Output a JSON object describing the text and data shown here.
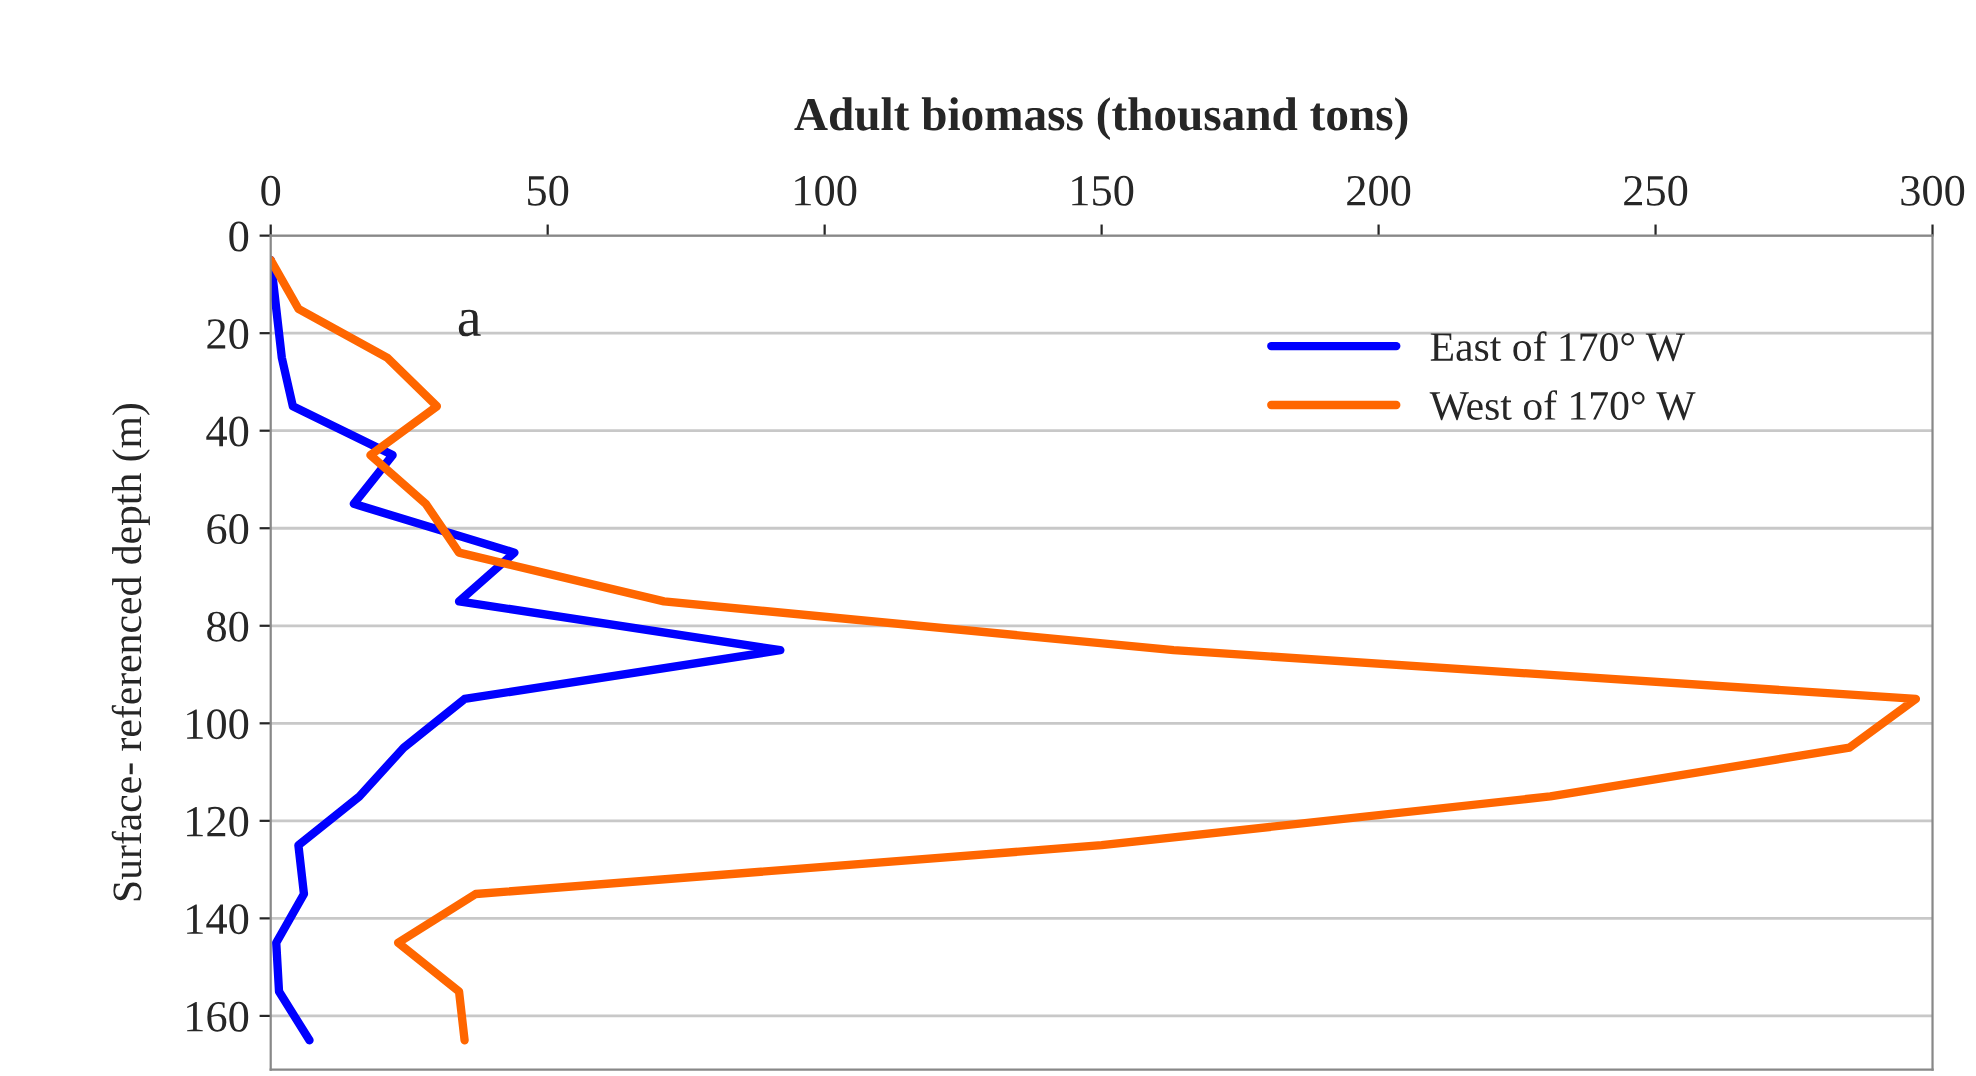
{
  "chart_data": {
    "type": "line",
    "orientation": "horizontal",
    "xlabel": "Adult biomass (thousand tons)",
    "ylabel": "Surface- referenced depth (m)",
    "x": [
      5,
      15,
      25,
      35,
      45,
      55,
      65,
      75,
      85,
      95,
      105,
      115,
      125,
      135,
      145,
      155,
      165
    ],
    "series": [
      {
        "name": "East of 170° W",
        "color": "#0000ff",
        "values": [
          0,
          1,
          2,
          4,
          22,
          15,
          44,
          34,
          92,
          35,
          24,
          16,
          5,
          6,
          1,
          1.5,
          7
        ]
      },
      {
        "name": "West of 170° W",
        "color": "#ff6600",
        "values": [
          0,
          5,
          21,
          30,
          18,
          28,
          34,
          71,
          163,
          297,
          285,
          231,
          150,
          37,
          23,
          34,
          35
        ]
      }
    ],
    "xlim": [
      0,
      300
    ],
    "xticks": [
      0,
      50,
      100,
      150,
      200,
      250,
      300
    ],
    "ylim": [
      171,
      0
    ],
    "yticks": [
      0,
      20,
      40,
      60,
      80,
      100,
      120,
      140,
      160
    ],
    "grid": "y",
    "legend": "top right",
    "annotations": [
      "a"
    ]
  }
}
